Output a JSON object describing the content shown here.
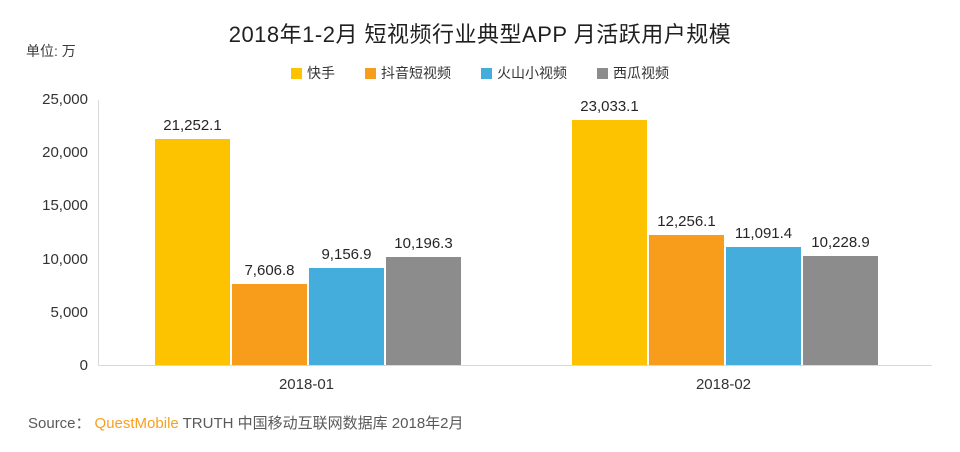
{
  "title": "2018年1-2月 短视频行业典型APP 月活跃用户规模",
  "unit_label": "单位: 万",
  "source": {
    "prefix": "Source：",
    "brand": "QuestMobile",
    "suffix": " TRUTH 中国移动互联网数据库 2018年2月"
  },
  "colors": {
    "kuaishou_yellow": "#FDC200",
    "douyin_orange": "#F89C1C",
    "huoshan_blue": "#45ADDC",
    "xigua_gray": "#8C8C8C",
    "axis_line": "#D9D9D9",
    "source_brand_orange": "#F8A01E"
  },
  "chart_data": {
    "type": "bar",
    "categories": [
      "2018-01",
      "2018-02"
    ],
    "series": [
      {
        "name": "快手",
        "color": "#FDC200",
        "values": [
          21252.1,
          23033.1
        ]
      },
      {
        "name": "抖音短视频",
        "color": "#F89C1C",
        "values": [
          7606.8,
          12256.1
        ]
      },
      {
        "name": "火山小视频",
        "color": "#45ADDC",
        "values": [
          9156.9,
          11091.4
        ]
      },
      {
        "name": "西瓜视频",
        "color": "#8C8C8C",
        "values": [
          10196.3,
          10228.9
        ]
      }
    ],
    "value_labels": [
      [
        "21,252.1",
        "7,606.8",
        "9,156.9",
        "10,196.3"
      ],
      [
        "23,033.1",
        "12,256.1",
        "11,091.4",
        "10,228.9"
      ]
    ],
    "ylim": [
      0,
      25000
    ],
    "yticks": [
      0,
      5000,
      10000,
      15000,
      20000,
      25000
    ],
    "grid": false,
    "legend_position": "top"
  }
}
